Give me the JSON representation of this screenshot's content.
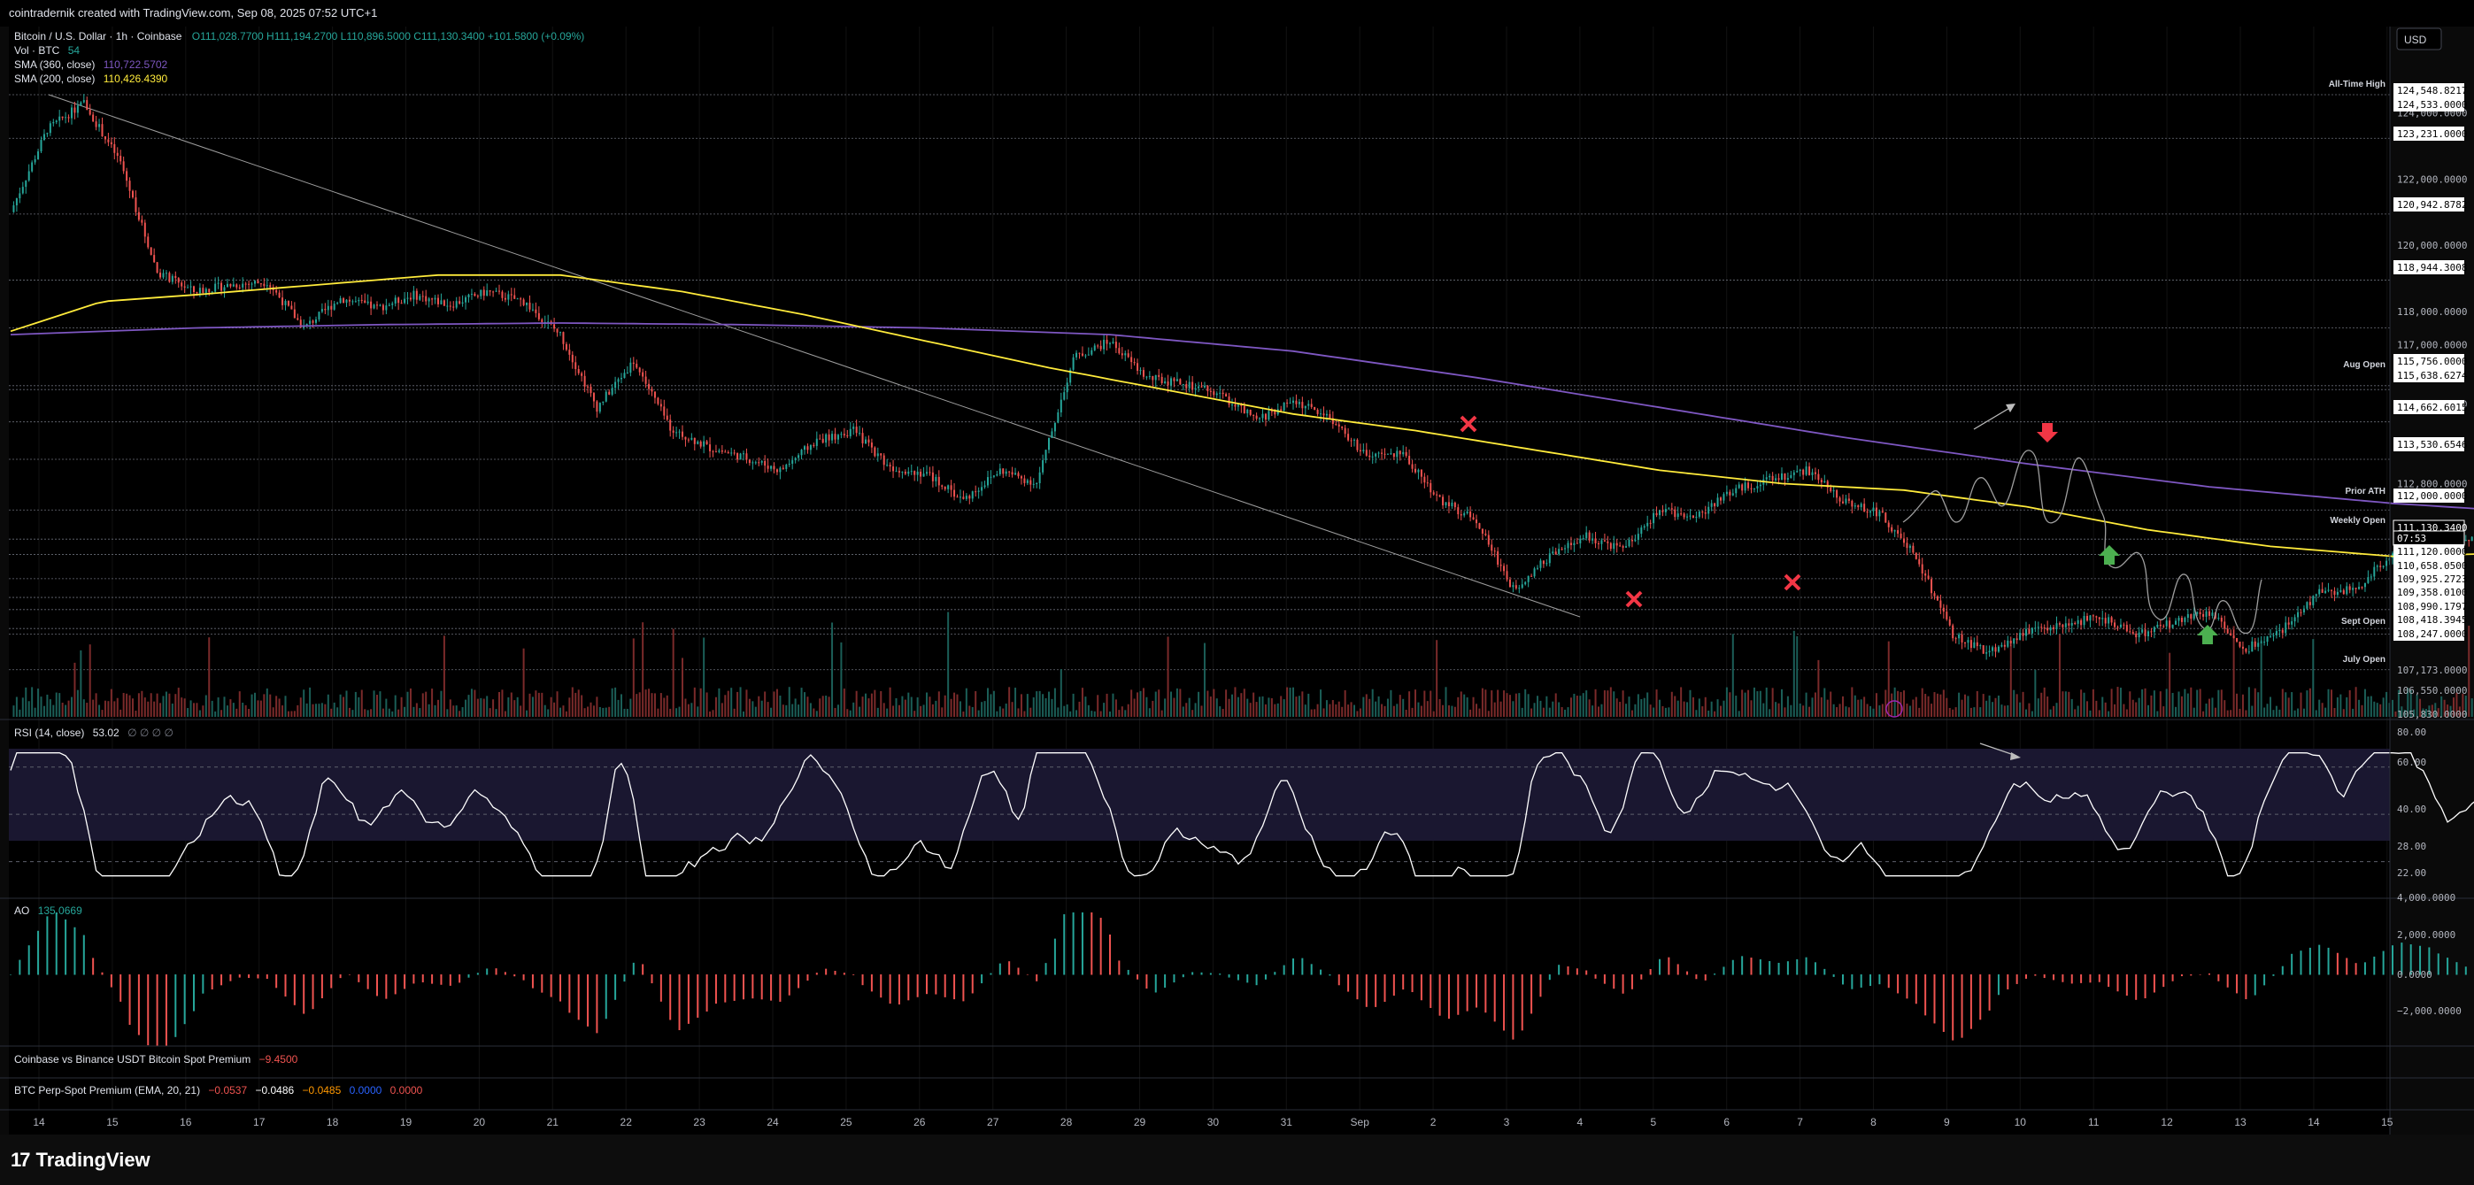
{
  "header": {
    "creator_text": "cointradernik created with TradingView.com, Sep 08, 2025 07:52 UTC+1"
  },
  "legend": {
    "symbol": "Bitcoin / U.S. Dollar · 1h · Coinbase",
    "ohlc": "O111,028.7700  H111,194.2700  L110,896.5000  C111,130.3400  +101.5800 (+0.09%)",
    "vol_label": "Vol · BTC",
    "vol_value": "54",
    "sma360_label": "SMA (360, close)",
    "sma360_value": "110,722.5702",
    "sma200_label": "SMA (200, close)",
    "sma200_value": "110,426.4390"
  },
  "currency": "USD",
  "colors": {
    "up": "#26a69a",
    "down": "#ef5350",
    "sma360": "#7e57c2",
    "sma200": "#ffeb3b",
    "rsi": "#ffffff",
    "marker_x": "#f23645",
    "arrow_up": "#4caf50",
    "arrow_down": "#f23645"
  },
  "price_axis": {
    "ticks": [
      "124,000.0000",
      "122,000.0000",
      "120,000.0000",
      "118,000.0000",
      "117,000.0000",
      "115,200.0000",
      "112,800.0000",
      "107,173.0000",
      "106,550.0000",
      "105,830.0000"
    ],
    "boxed_labels": [
      "124,548.8217",
      "124,533.0000",
      "123,231.0000",
      "120,942.8782",
      "118,944.3008",
      "115,756.0000",
      "115,638.6274",
      "114,662.6015",
      "113,530.6546",
      "112,000.0000",
      "111,130.3400",
      "07:53",
      "111,120.0000",
      "110,658.0500",
      "109,925.2723",
      "109,358.0100",
      "108,990.1797",
      "108,418.3945",
      "108,247.0000"
    ]
  },
  "level_labels": [
    "All-Time High",
    "Aug Open",
    "Prior ATH",
    "Weekly Open",
    "Sept Open",
    "July Open"
  ],
  "time_axis": [
    "14",
    "15",
    "16",
    "17",
    "18",
    "19",
    "20",
    "21",
    "22",
    "23",
    "24",
    "25",
    "26",
    "27",
    "28",
    "29",
    "30",
    "31",
    "Sep",
    "2",
    "3",
    "4",
    "5",
    "6",
    "7",
    "8",
    "9",
    "10",
    "11",
    "12",
    "13",
    "14",
    "15"
  ],
  "rsi_panel": {
    "label": "RSI (14, close)",
    "value": "53.02",
    "ticks": [
      "80.00",
      "60.00",
      "40.00",
      "28.00",
      "22.00"
    ]
  },
  "ao_panel": {
    "label": "AO",
    "value": "135.0669",
    "ticks": [
      "4,000.0000",
      "2,000.0000",
      "0.0000",
      "−2,000.0000"
    ]
  },
  "premium_panel": {
    "label": "Coinbase vs Binance USDT Bitcoin Spot Premium",
    "value": "−9.4500"
  },
  "perp_panel": {
    "label": "BTC Perp-Spot Premium (EMA, 20, 21)",
    "v1": "−0.0537",
    "v2": "−0.0486",
    "v3": "−0.0485",
    "v4": "0.0000",
    "v5": "0.0000"
  },
  "footer": {
    "brand": "TradingView"
  },
  "chart_data": {
    "type": "candlestick",
    "title": "Bitcoin / U.S. Dollar · 1h · Coinbase",
    "ylim": [
      105500,
      125200
    ],
    "x_labels": [
      "14",
      "15",
      "16",
      "17",
      "18",
      "19",
      "20",
      "21",
      "22",
      "23",
      "24",
      "25",
      "26",
      "27",
      "28",
      "29",
      "30",
      "31",
      "Sep",
      "2",
      "3",
      "4",
      "5",
      "6",
      "7",
      "8"
    ],
    "price_path_hourly_anchor_values": [
      [
        0,
        121000
      ],
      [
        12,
        123500
      ],
      [
        24,
        124300
      ],
      [
        36,
        122500
      ],
      [
        48,
        119200
      ],
      [
        60,
        118600
      ],
      [
        72,
        118800
      ],
      [
        84,
        118900
      ],
      [
        96,
        117500
      ],
      [
        108,
        118400
      ],
      [
        120,
        118100
      ],
      [
        132,
        118500
      ],
      [
        144,
        118200
      ],
      [
        156,
        118600
      ],
      [
        168,
        118300
      ],
      [
        180,
        117300
      ],
      [
        192,
        115100
      ],
      [
        204,
        116500
      ],
      [
        216,
        114500
      ],
      [
        228,
        113900
      ],
      [
        240,
        113600
      ],
      [
        252,
        113200
      ],
      [
        264,
        114100
      ],
      [
        276,
        114400
      ],
      [
        288,
        113300
      ],
      [
        300,
        113100
      ],
      [
        312,
        112300
      ],
      [
        324,
        113200
      ],
      [
        336,
        112800
      ],
      [
        348,
        116600
      ],
      [
        360,
        117100
      ],
      [
        372,
        116000
      ],
      [
        384,
        115800
      ],
      [
        396,
        115500
      ],
      [
        408,
        114700
      ],
      [
        420,
        115300
      ],
      [
        432,
        114800
      ],
      [
        444,
        113600
      ],
      [
        456,
        113700
      ],
      [
        468,
        112300
      ],
      [
        480,
        111700
      ],
      [
        492,
        109600
      ],
      [
        504,
        110600
      ],
      [
        516,
        111200
      ],
      [
        528,
        110800
      ],
      [
        540,
        112000
      ],
      [
        552,
        111800
      ],
      [
        564,
        112600
      ],
      [
        576,
        112900
      ],
      [
        588,
        113200
      ],
      [
        600,
        112300
      ],
      [
        612,
        111900
      ],
      [
        624,
        110600
      ],
      [
        636,
        108200
      ],
      [
        648,
        107700
      ],
      [
        660,
        108300
      ],
      [
        672,
        108500
      ],
      [
        684,
        108800
      ],
      [
        696,
        108200
      ],
      [
        708,
        108600
      ],
      [
        720,
        108900
      ],
      [
        732,
        107800
      ],
      [
        744,
        108400
      ],
      [
        756,
        109500
      ],
      [
        768,
        109600
      ],
      [
        780,
        110700
      ],
      [
        792,
        111300
      ],
      [
        804,
        111100
      ],
      [
        816,
        111500
      ],
      [
        828,
        111800
      ],
      [
        840,
        111200
      ],
      [
        852,
        112100
      ],
      [
        864,
        111400
      ],
      [
        876,
        110900
      ],
      [
        888,
        109500
      ],
      [
        900,
        110800
      ],
      [
        912,
        111900
      ],
      [
        924,
        113300
      ],
      [
        936,
        110600
      ],
      [
        948,
        111400
      ],
      [
        960,
        110700
      ],
      [
        972,
        110400
      ],
      [
        984,
        110900
      ],
      [
        996,
        110600
      ],
      [
        1008,
        110200
      ],
      [
        1020,
        110500
      ],
      [
        1032,
        111200
      ],
      [
        1044,
        111100
      ],
      [
        1050,
        111130
      ]
    ],
    "series": [
      {
        "name": "SMA (360, close)",
        "values": [
          [
            0,
            117300
          ],
          [
            60,
            117500
          ],
          [
            120,
            117600
          ],
          [
            180,
            117650
          ],
          [
            240,
            117600
          ],
          [
            300,
            117500
          ],
          [
            360,
            117300
          ],
          [
            420,
            116800
          ],
          [
            480,
            116000
          ],
          [
            540,
            115100
          ],
          [
            600,
            114200
          ],
          [
            660,
            113400
          ],
          [
            720,
            112700
          ],
          [
            780,
            112200
          ],
          [
            840,
            111850
          ],
          [
            900,
            111500
          ],
          [
            960,
            111200
          ],
          [
            1020,
            110900
          ],
          [
            1050,
            110722
          ]
        ]
      },
      {
        "name": "SMA (200, close)",
        "values": [
          [
            0,
            117400
          ],
          [
            30,
            118300
          ],
          [
            60,
            118500
          ],
          [
            100,
            118800
          ],
          [
            140,
            119100
          ],
          [
            180,
            119100
          ],
          [
            220,
            118600
          ],
          [
            260,
            117900
          ],
          [
            300,
            117100
          ],
          [
            340,
            116300
          ],
          [
            380,
            115600
          ],
          [
            420,
            114900
          ],
          [
            460,
            114400
          ],
          [
            500,
            113800
          ],
          [
            540,
            113200
          ],
          [
            580,
            112800
          ],
          [
            620,
            112600
          ],
          [
            660,
            112100
          ],
          [
            700,
            111400
          ],
          [
            740,
            110900
          ],
          [
            780,
            110600
          ],
          [
            820,
            110700
          ],
          [
            860,
            110800
          ],
          [
            900,
            110700
          ],
          [
            940,
            110600
          ],
          [
            980,
            110400
          ],
          [
            1020,
            110300
          ],
          [
            1050,
            110426
          ]
        ]
      }
    ],
    "levels": [
      {
        "label": "All-Time High",
        "value": 124548.82
      },
      {
        "label": "Aug Open",
        "value": 115756.0
      },
      {
        "label": "Prior ATH",
        "value": 112000.0
      },
      {
        "label": "Weekly Open",
        "value": 111120.0
      },
      {
        "label": "Sept Open",
        "value": 108418.39
      },
      {
        "label": "July Open",
        "value": 107173.0
      }
    ],
    "rsi": {
      "range": [
        15,
        90
      ],
      "overbought": 70,
      "oversold": 30,
      "last": 53.02
    },
    "ao": {
      "last": 135.0669
    }
  }
}
